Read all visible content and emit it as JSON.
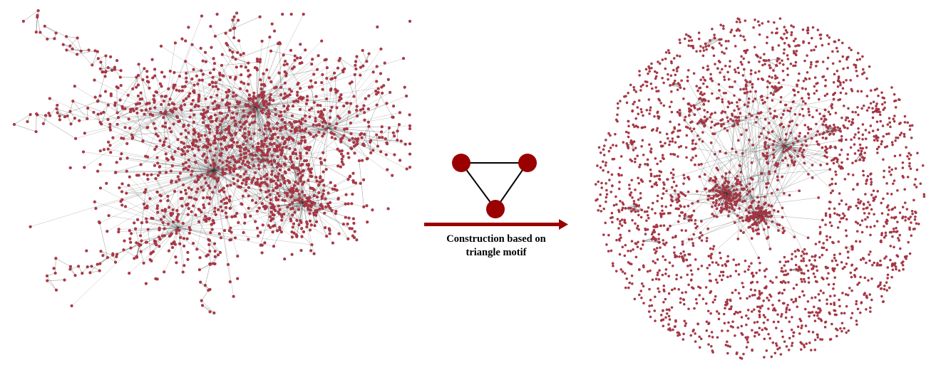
{
  "caption": {
    "line1": "Construction based on",
    "line2": "triangle motif"
  },
  "colors": {
    "node": "#b03a48",
    "node_stroke": "#8a2231",
    "edge": "#2f2f2f",
    "motif_node": "#9b0000",
    "motif_edge": "#000000",
    "arrow": "#9b0000"
  },
  "panels": {
    "left": {
      "name": "original-network"
    },
    "motif": {
      "name": "triangle-motif"
    },
    "right": {
      "name": "motif-based-network"
    }
  }
}
